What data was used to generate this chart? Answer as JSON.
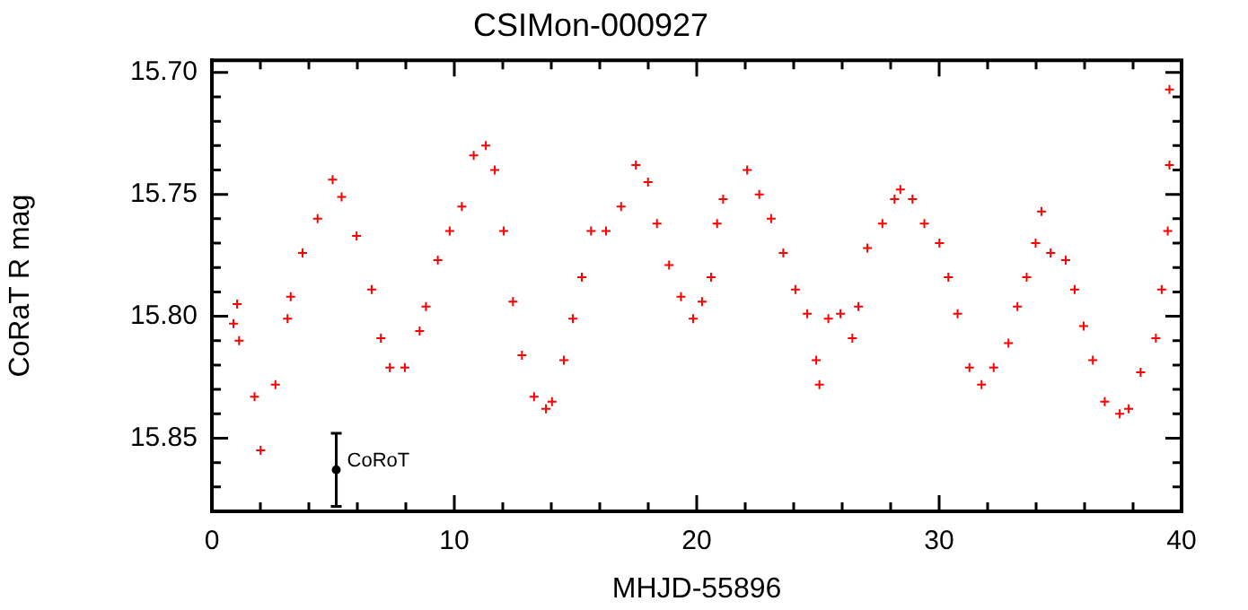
{
  "chart_data": {
    "type": "scatter",
    "title": "CSIMon-000927",
    "xlabel": "MHJD-55896",
    "ylabel": "CoRaT R mag",
    "xlim": [
      0,
      40
    ],
    "xticks": [
      0,
      {
        "value": 2,
        "label": null
      },
      {
        "value": 4,
        "label": null
      },
      {
        "value": 6,
        "label": null
      },
      {
        "value": 8,
        "label": null
      },
      10,
      {
        "value": 12,
        "label": null
      },
      {
        "value": 14,
        "label": null
      },
      {
        "value": 16,
        "label": null
      },
      {
        "value": 18,
        "label": null
      },
      20,
      {
        "value": 22,
        "label": null
      },
      {
        "value": 24,
        "label": null
      },
      {
        "value": 26,
        "label": null
      },
      {
        "value": 28,
        "label": null
      },
      30,
      {
        "value": 32,
        "label": null
      },
      {
        "value": 34,
        "label": null
      },
      {
        "value": 36,
        "label": null
      },
      {
        "value": 38,
        "label": null
      },
      40
    ],
    "ylim": [
      15.88,
      15.695
    ],
    "yticks": [
      {
        "value": 15.7,
        "label": "15.70"
      },
      {
        "value": 15.71,
        "label": null
      },
      {
        "value": 15.72,
        "label": null
      },
      {
        "value": 15.73,
        "label": null
      },
      {
        "value": 15.74,
        "label": null
      },
      15.75,
      {
        "value": 15.76,
        "label": null
      },
      {
        "value": 15.77,
        "label": null
      },
      {
        "value": 15.78,
        "label": null
      },
      {
        "value": 15.79,
        "label": null
      },
      {
        "value": 15.8,
        "label": "15.80"
      },
      {
        "value": 15.81,
        "label": null
      },
      {
        "value": 15.82,
        "label": null
      },
      {
        "value": 15.83,
        "label": null
      },
      {
        "value": 15.84,
        "label": null
      },
      15.85,
      {
        "value": 15.86,
        "label": null
      },
      {
        "value": 15.87,
        "label": null
      }
    ],
    "marker": "cross",
    "legend": false,
    "grid": false,
    "series": [
      {
        "color": "#ff0000",
        "x": [
          0.89,
          1.04,
          1.12,
          1.76,
          2.01,
          2.62,
          3.12,
          3.25,
          3.74,
          4.36,
          4.98,
          5.35,
          5.97,
          6.59,
          6.97,
          7.34,
          7.96,
          8.57,
          8.83,
          9.32,
          9.81,
          10.31,
          10.8,
          11.3,
          11.67,
          12.04,
          12.42,
          12.79,
          13.29,
          13.78,
          14.03,
          14.52,
          14.89,
          15.26,
          15.64,
          16.26,
          16.88,
          17.49,
          17.99,
          18.36,
          18.86,
          19.35,
          19.85,
          20.22,
          20.59,
          20.84,
          21.09,
          22.08,
          22.58,
          23.07,
          23.57,
          24.07,
          24.56,
          24.93,
          25.06,
          25.43,
          25.93,
          26.42,
          26.67,
          27.04,
          27.66,
          28.16,
          28.4,
          28.9,
          29.39,
          30.01,
          30.38,
          30.76,
          31.25,
          31.75,
          32.25,
          32.86,
          33.23,
          33.61,
          33.98,
          34.22,
          34.6,
          35.22,
          35.59,
          35.96,
          36.34,
          36.83,
          37.45,
          37.82,
          38.31,
          38.94,
          39.18,
          39.43,
          39.5,
          39.5
        ],
        "values": [
          15.803,
          15.795,
          15.81,
          15.833,
          15.855,
          15.828,
          15.801,
          15.792,
          15.774,
          15.76,
          15.744,
          15.751,
          15.767,
          15.789,
          15.809,
          15.821,
          15.821,
          15.806,
          15.796,
          15.777,
          15.765,
          15.755,
          15.734,
          15.73,
          15.74,
          15.765,
          15.794,
          15.816,
          15.833,
          15.838,
          15.835,
          15.818,
          15.801,
          15.784,
          15.765,
          15.765,
          15.755,
          15.738,
          15.745,
          15.762,
          15.779,
          15.792,
          15.801,
          15.794,
          15.784,
          15.762,
          15.752,
          15.74,
          15.75,
          15.76,
          15.774,
          15.789,
          15.799,
          15.818,
          15.828,
          15.801,
          15.799,
          15.809,
          15.796,
          15.772,
          15.762,
          15.752,
          15.748,
          15.752,
          15.762,
          15.77,
          15.784,
          15.799,
          15.821,
          15.828,
          15.821,
          15.811,
          15.796,
          15.784,
          15.77,
          15.757,
          15.774,
          15.777,
          15.789,
          15.804,
          15.818,
          15.835,
          15.84,
          15.838,
          15.823,
          15.809,
          15.789,
          15.765,
          15.738,
          15.707
        ]
      },
      {
        "name": "CoRoT",
        "color": "#000000",
        "marker": "circle",
        "x": [
          5.13
        ],
        "values": [
          15.863
        ],
        "errors": [
          0.015
        ]
      }
    ]
  }
}
